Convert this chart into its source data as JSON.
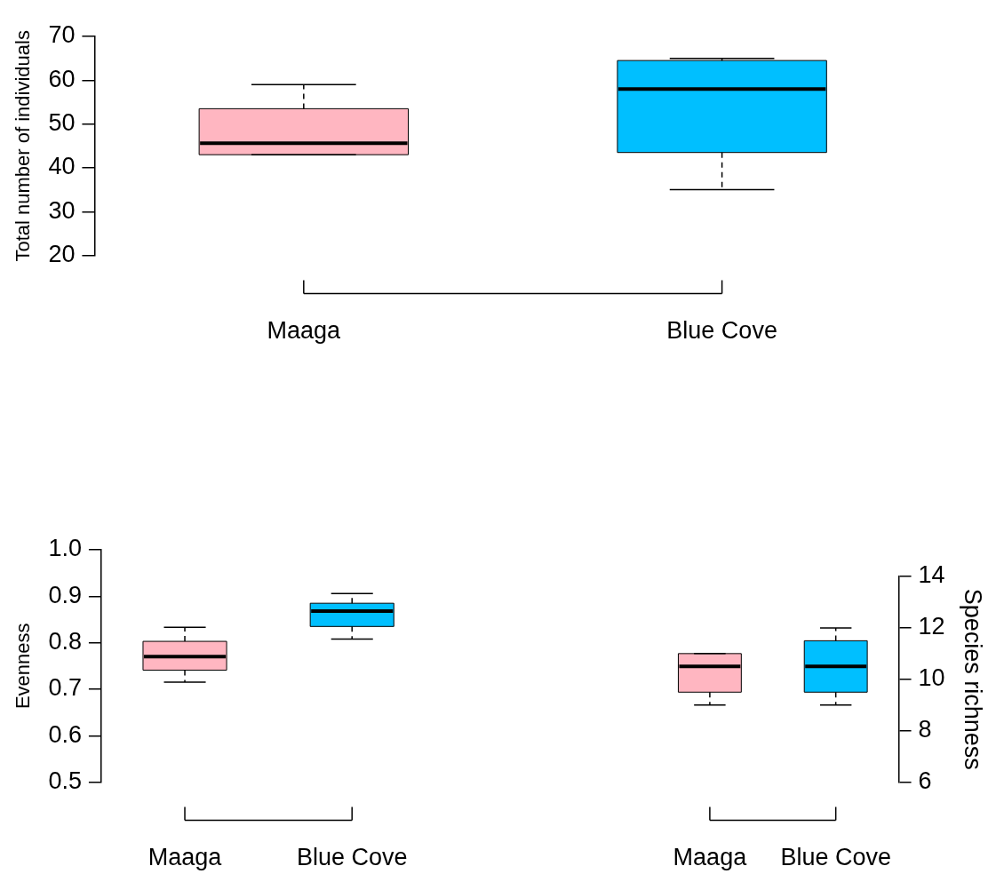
{
  "chart_data": [
    {
      "type": "box",
      "ylabel": "Total number of individuals",
      "categories": [
        "Maaga",
        "Blue Cove"
      ],
      "ylim": [
        20,
        70
      ],
      "yticks": [
        20,
        30,
        40,
        50,
        60,
        70
      ],
      "series": [
        {
          "colors": [
            "#ffb6c1",
            "#00bfff"
          ],
          "boxes": [
            {
              "low": 43,
              "q1": 43,
              "median": 45.6,
              "q3": 53.5,
              "high": 59
            },
            {
              "low": 35,
              "q1": 43.5,
              "median": 58,
              "q3": 64.5,
              "high": 65
            }
          ]
        }
      ]
    },
    {
      "type": "box",
      "ylabel": "Evenness",
      "categories": [
        "Maaga",
        "Blue Cove"
      ],
      "ylim": [
        0.5,
        1
      ],
      "yticks": [
        0.5,
        0.6,
        0.7,
        0.8,
        0.9,
        {
          "value": 1,
          "label": "1.0"
        }
      ],
      "series": [
        {
          "colors": [
            "#ffb6c1",
            "#00bfff"
          ],
          "boxes": [
            {
              "low": 0.715,
              "q1": 0.741,
              "median": 0.77,
              "q3": 0.803,
              "high": 0.833
            },
            {
              "low": 0.808,
              "q1": 0.835,
              "median": 0.868,
              "q3": 0.885,
              "high": 0.906
            }
          ]
        }
      ]
    },
    {
      "type": "box",
      "y2label": "Species richness",
      "categories": [
        "Maaga",
        "Blue Cove"
      ],
      "y2lim": [
        6,
        14
      ],
      "y2ticks": [
        6,
        8,
        10,
        12,
        14
      ],
      "series": [
        {
          "axis": "y2",
          "colors": [
            "#ffb6c1",
            "#00bfff"
          ],
          "boxes": [
            {
              "low": 9,
              "q1": 9.5,
              "median": 10.5,
              "q3": 11,
              "high": 11
            },
            {
              "low": 9,
              "q1": 9.5,
              "median": 10.5,
              "q3": 11.5,
              "high": 12
            }
          ]
        }
      ]
    }
  ]
}
